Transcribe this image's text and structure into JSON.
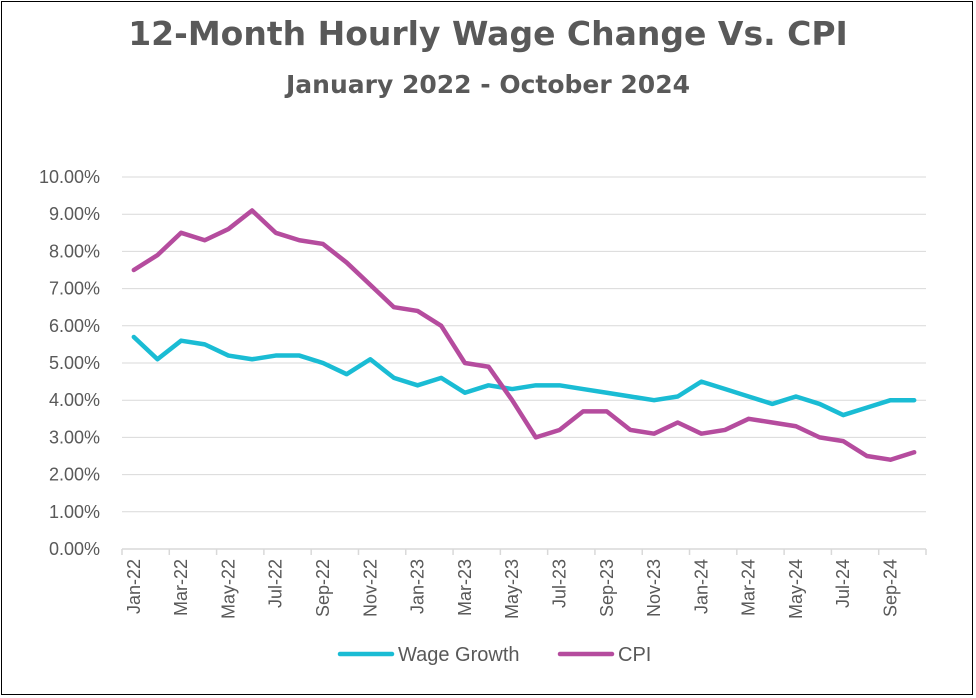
{
  "chart_data": {
    "type": "line",
    "title": "12-Month Hourly Wage Change Vs. CPI",
    "subtitle": "January 2022 - October 2024",
    "xlabel": "",
    "ylabel": "",
    "ylim": [
      0,
      10
    ],
    "y_ticks": [
      "0.00%",
      "1.00%",
      "2.00%",
      "3.00%",
      "4.00%",
      "5.00%",
      "6.00%",
      "7.00%",
      "8.00%",
      "9.00%",
      "10.00%"
    ],
    "x_tick_labels": [
      "Jan-22",
      "Mar-22",
      "May-22",
      "Jul-22",
      "Sep-22",
      "Nov-22",
      "Jan-23",
      "Mar-23",
      "May-23",
      "Jul-23",
      "Sep-23",
      "Nov-23",
      "Jan-24",
      "Mar-24",
      "May-24",
      "Jul-24",
      "Sep-24"
    ],
    "categories": [
      "Jan-22",
      "Feb-22",
      "Mar-22",
      "Apr-22",
      "May-22",
      "Jun-22",
      "Jul-22",
      "Aug-22",
      "Sep-22",
      "Oct-22",
      "Nov-22",
      "Dec-22",
      "Jan-23",
      "Feb-23",
      "Mar-23",
      "Apr-23",
      "May-23",
      "Jun-23",
      "Jul-23",
      "Aug-23",
      "Sep-23",
      "Oct-23",
      "Nov-23",
      "Dec-23",
      "Jan-24",
      "Feb-24",
      "Mar-24",
      "Apr-24",
      "May-24",
      "Jun-24",
      "Jul-24",
      "Aug-24",
      "Sep-24",
      "Oct-24"
    ],
    "grid": true,
    "legend_position": "bottom",
    "series": [
      {
        "name": "Wage Growth",
        "color": "#1ABCD4",
        "values": [
          5.7,
          5.1,
          5.6,
          5.5,
          5.2,
          5.1,
          5.2,
          5.2,
          5.0,
          4.7,
          5.1,
          4.6,
          4.4,
          4.6,
          4.2,
          4.4,
          4.3,
          4.4,
          4.4,
          4.3,
          4.2,
          4.1,
          4.0,
          4.1,
          4.5,
          4.3,
          4.1,
          3.9,
          4.1,
          3.9,
          3.6,
          3.8,
          4.0,
          4.0
        ]
      },
      {
        "name": "CPI",
        "color": "#B54C9E",
        "values": [
          7.5,
          7.9,
          8.5,
          8.3,
          8.6,
          9.1,
          8.5,
          8.3,
          8.2,
          7.7,
          7.1,
          6.5,
          6.4,
          6.0,
          5.0,
          4.9,
          4.0,
          3.0,
          3.2,
          3.7,
          3.7,
          3.2,
          3.1,
          3.4,
          3.1,
          3.2,
          3.5,
          3.4,
          3.3,
          3.0,
          2.9,
          2.5,
          2.4,
          2.6
        ]
      }
    ]
  }
}
